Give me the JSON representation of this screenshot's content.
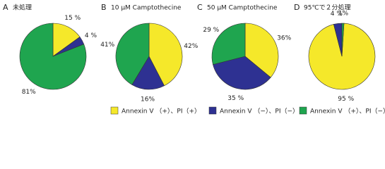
{
  "chart_data": [
    {
      "type": "pie",
      "label": "A",
      "title": "未処理",
      "values": [
        15,
        4,
        81
      ],
      "value_labels": [
        "15 %",
        "4 %",
        "81%"
      ]
    },
    {
      "type": "pie",
      "label": "B",
      "title": "10 μM Camptothecine",
      "values": [
        42,
        16,
        41
      ],
      "value_labels": [
        "42%",
        "16%",
        "41%"
      ]
    },
    {
      "type": "pie",
      "label": "C",
      "title": "50 μM Camptothecine",
      "values": [
        36,
        35,
        29
      ],
      "value_labels": [
        "36%",
        "35 %",
        "29 %"
      ]
    },
    {
      "type": "pie",
      "label": "D",
      "title": "95℃で２分処理",
      "values": [
        95,
        4,
        1
      ],
      "value_labels": [
        "95 %",
        "4 %",
        "1%"
      ]
    }
  ],
  "legend": [
    {
      "name": "Annexin V （+）、PI（+）",
      "color": "#f5e82a"
    },
    {
      "name": "Annexin V （−）、PI（−）",
      "color": "#2e3192"
    },
    {
      "name": "Annexin V （+）、PI（−）",
      "color": "#1fa54f"
    }
  ]
}
